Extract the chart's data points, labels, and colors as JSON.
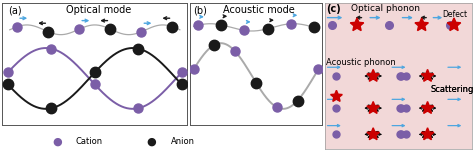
{
  "panel_a_title": "Optical mode",
  "panel_b_title": "Acoustic mode",
  "panel_c_title": "Optical phonon",
  "panel_a_label": "(a)",
  "panel_b_label": "(b)",
  "panel_c_label": "(c)",
  "cation_color": "#7B5EA7",
  "anion_color": "#1a1a1a",
  "defect_color": "#cc0000",
  "blue_arrow": "#4da6e0",
  "wave_gray": "#aaaaaa",
  "bg_c": "#f2d8d8",
  "legend_cation": "Cation",
  "legend_anion": "Anion",
  "defect_label": "Defect",
  "scattering_label": "Scattering",
  "acoustic_label": "Acoustic phonon"
}
